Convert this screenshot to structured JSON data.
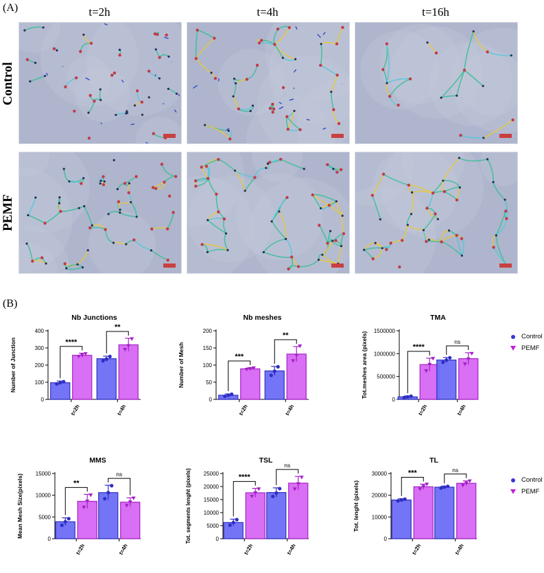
{
  "figure": {
    "panel_a": "(A)",
    "panel_b": "(B)",
    "columns": [
      "t=2h",
      "t=4h",
      "t=16h"
    ],
    "rows": [
      "Control",
      "PEMF"
    ]
  },
  "legend": {
    "items": [
      {
        "label": "Control",
        "color": "#5b61f0",
        "marker": "circle"
      },
      {
        "label": "PEMF",
        "color": "#d35cf2",
        "marker": "triangle-down"
      }
    ]
  },
  "colors": {
    "control": "#6d6ef6",
    "control_edge": "#2e2ec4",
    "pemf": "#d868f4",
    "pemf_edge": "#a520c8",
    "micro_bg": "#aeb5cd",
    "scale_bar": "#c94040"
  },
  "chart_data": [
    {
      "type": "bar",
      "title": "Nb Junctions",
      "ylabel": "Number of Junction",
      "categories": [
        "t=2h",
        "t=4h"
      ],
      "series": [
        {
          "name": "Control",
          "values": [
            97,
            237
          ],
          "errors": [
            10,
            15
          ],
          "points": [
            [
              90,
              97,
              103
            ],
            [
              225,
              235,
              250
            ]
          ]
        },
        {
          "name": "PEMF",
          "values": [
            257,
            318
          ],
          "errors": [
            12,
            38
          ],
          "points": [
            [
              250,
              258,
              265
            ],
            [
              290,
              312,
              352
            ]
          ]
        }
      ],
      "ylim": [
        0,
        400
      ],
      "yticks": [
        0,
        100,
        200,
        300,
        400
      ],
      "ytick_labels": [
        "0",
        "100",
        "200",
        "300",
        "400"
      ],
      "sig": [
        "****",
        "**"
      ]
    },
    {
      "type": "bar",
      "title": "Nb meshes",
      "ylabel": "Number of Mesh",
      "categories": [
        "t=2h",
        "t=4h"
      ],
      "series": [
        {
          "name": "Control",
          "values": [
            12,
            83
          ],
          "errors": [
            4,
            13
          ],
          "points": [
            [
              9,
              12,
              15
            ],
            [
              70,
              82,
              95
            ]
          ]
        },
        {
          "name": "PEMF",
          "values": [
            89,
            132
          ],
          "errors": [
            3,
            22
          ],
          "points": [
            [
              87,
              89,
              91
            ],
            [
              112,
              128,
              155
            ]
          ]
        }
      ],
      "ylim": [
        0,
        200
      ],
      "yticks": [
        0,
        50,
        100,
        150,
        200
      ],
      "ytick_labels": [
        "0",
        "50",
        "100",
        "150",
        "200"
      ],
      "sig": [
        "***",
        "**"
      ]
    },
    {
      "type": "bar",
      "title": "TMA",
      "ylabel": "Tot.meshes area (pixels)",
      "categories": [
        "t=2h",
        "t=4h"
      ],
      "series": [
        {
          "name": "Control",
          "values": [
            55000,
            860000
          ],
          "errors": [
            20000,
            55000
          ],
          "points": [
            [
              40000,
              55000,
              70000
            ],
            [
              810000,
              860000,
              910000
            ]
          ]
        },
        {
          "name": "PEMF",
          "values": [
            760000,
            890000
          ],
          "errors": [
            140000,
            130000
          ],
          "points": [
            [
              620000,
              760000,
              890000
            ],
            [
              770000,
              880000,
              1000000
            ]
          ]
        }
      ],
      "ylim": [
        0,
        1500000
      ],
      "yticks": [
        0,
        500000,
        1000000,
        1500000
      ],
      "ytick_labels": [
        "0",
        "500000",
        "1000000",
        "1500000"
      ],
      "sig": [
        "****",
        "ns"
      ]
    },
    {
      "type": "bar",
      "title": "MMS",
      "ylabel": "Mean Mesh Size(pixels)",
      "categories": [
        "t=2h",
        "t=4h"
      ],
      "series": [
        {
          "name": "Control",
          "values": [
            3900,
            10600
          ],
          "errors": [
            900,
            1700
          ],
          "points": [
            [
              3100,
              3900,
              4600
            ],
            [
              9200,
              10600,
              12200
            ]
          ]
        },
        {
          "name": "PEMF",
          "values": [
            8600,
            8400
          ],
          "errors": [
            1600,
            1000
          ],
          "points": [
            [
              7200,
              8600,
              10000
            ],
            [
              7600,
              8400,
              9300
            ]
          ]
        }
      ],
      "ylim": [
        0,
        15000
      ],
      "yticks": [
        0,
        5000,
        10000,
        15000
      ],
      "ytick_labels": [
        "0",
        "5000",
        "10000",
        "15000"
      ],
      "sig": [
        "**",
        "ns"
      ]
    },
    {
      "type": "bar",
      "title": "TSL",
      "ylabel": "Tot. segments lenght (pixels)",
      "categories": [
        "t=2h",
        "t=4h"
      ],
      "series": [
        {
          "name": "Control",
          "values": [
            6200,
            17700
          ],
          "errors": [
            1300,
            1800
          ],
          "points": [
            [
              5200,
              6200,
              7300
            ],
            [
              16200,
              17500,
              19200
            ]
          ]
        },
        {
          "name": "PEMF",
          "values": [
            17600,
            21300
          ],
          "errors": [
            1700,
            2600
          ],
          "points": [
            [
              16200,
              17500,
              19000
            ],
            [
              19000,
              21000,
              23500
            ]
          ]
        }
      ],
      "ylim": [
        0,
        25000
      ],
      "yticks": [
        0,
        5000,
        10000,
        15000,
        20000,
        25000
      ],
      "ytick_labels": [
        "0",
        "5000",
        "10000",
        "15000",
        "20000",
        "25000"
      ],
      "sig": [
        "****",
        "ns"
      ]
    },
    {
      "type": "bar",
      "title": "TL",
      "ylabel": "Tot. lenght (pixels)",
      "categories": [
        "t=2h",
        "t=4h"
      ],
      "series": [
        {
          "name": "Control",
          "values": [
            17800,
            23700
          ],
          "errors": [
            600,
            500
          ],
          "points": [
            [
              17400,
              17800,
              18200
            ],
            [
              23300,
              23700,
              24100
            ]
          ]
        },
        {
          "name": "PEMF",
          "values": [
            23900,
            25500
          ],
          "errors": [
            1200,
            1100
          ],
          "points": [
            [
              22800,
              24000,
              25000
            ],
            [
              24500,
              25500,
              26500
            ]
          ]
        }
      ],
      "ylim": [
        0,
        30000
      ],
      "yticks": [
        0,
        10000,
        20000,
        30000
      ],
      "ytick_labels": [
        "0",
        "10000",
        "20000",
        "30000"
      ],
      "sig": [
        "***",
        "ns"
      ]
    }
  ]
}
